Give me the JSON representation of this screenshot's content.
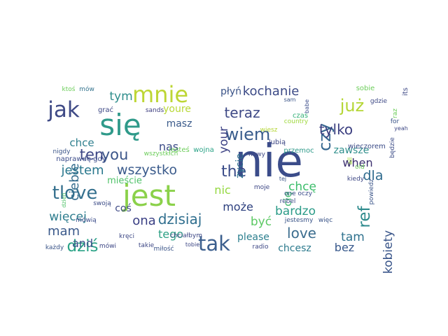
{
  "word_cloud": {
    "words": [
      {
        "text": "nie",
        "color": "#3b4c8a"
      },
      {
        "text": "jest",
        "color": "#8bd14a"
      },
      {
        "text": "się",
        "color": "#2f9a8a"
      },
      {
        "text": "mnie",
        "color": "#bdd634"
      },
      {
        "text": "jak",
        "color": "#3f4a86"
      },
      {
        "text": "tak",
        "color": "#3c5f8e"
      },
      {
        "text": "już",
        "color": "#b5d636"
      },
      {
        "text": "wiem",
        "color": "#3a5d8d"
      },
      {
        "text": "love",
        "color": "#3b6d8e"
      },
      {
        "text": "tlove",
        "color": "#35708e"
      },
      {
        "text": "dziś",
        "color": "#2ba387"
      },
      {
        "text": "teraz",
        "color": "#3f4a86"
      },
      {
        "text": "wszystko",
        "color": "#3b5b8c"
      },
      {
        "text": "the",
        "color": "#3a4b88"
      },
      {
        "text": "czy",
        "color": "#33658e"
      },
      {
        "text": "tylko",
        "color": "#3c3f80"
      },
      {
        "text": "ref",
        "color": "#2d8a8c"
      },
      {
        "text": "może",
        "color": "#2c3f7e"
      },
      {
        "text": "dzisiaj",
        "color": "#2f6e8e"
      },
      {
        "text": "ten",
        "color": "#3c4684"
      },
      {
        "text": "you",
        "color": "#3a5488"
      },
      {
        "text": "jestem",
        "color": "#2a788e"
      },
      {
        "text": "kochanie",
        "color": "#3c4a86"
      },
      {
        "text": "dla",
        "color": "#2f6b8e"
      },
      {
        "text": "kobiety",
        "color": "#385489"
      },
      {
        "text": "bardzo",
        "color": "#2c9b88"
      },
      {
        "text": "być",
        "color": "#5bc863"
      },
      {
        "text": "mam",
        "color": "#3b5a8b"
      },
      {
        "text": "więcej",
        "color": "#2e7d8e"
      },
      {
        "text": "ona",
        "color": "#3a3f84"
      },
      {
        "text": "tego",
        "color": "#2ea184"
      },
      {
        "text": "tam",
        "color": "#2f728e"
      },
      {
        "text": "bez",
        "color": "#37588b"
      },
      {
        "text": "chcesz",
        "color": "#2c7a8d"
      },
      {
        "text": "chcę",
        "color": "#3dbd6b"
      },
      {
        "text": "ciebie",
        "color": "#356d8e"
      },
      {
        "text": "nas",
        "color": "#3a4a86"
      },
      {
        "text": "nic",
        "color": "#93d83e"
      },
      {
        "text": "tym",
        "color": "#2f8e8c"
      },
      {
        "text": "chce",
        "color": "#2e7f8e"
      },
      {
        "text": "your",
        "color": "#3c4184"
      },
      {
        "text": "and",
        "color": "#3b528a"
      },
      {
        "text": "zawsze",
        "color": "#2f8f8c"
      },
      {
        "text": "when",
        "color": "#3b2f6e"
      },
      {
        "text": "please",
        "color": "#2c7f8e"
      },
      {
        "text": "płyń",
        "color": "#3b5488"
      },
      {
        "text": "youre",
        "color": "#b8d836"
      },
      {
        "text": "masz",
        "color": "#3a5a8a"
      },
      {
        "text": "cię",
        "color": "#43bd71"
      },
      {
        "text": "mieście",
        "color": "#4fc269"
      },
      {
        "text": "coś",
        "color": "#3f4a86"
      },
      {
        "text": "życie",
        "color": "#2f708e"
      },
      {
        "text": "sobie",
        "color": "#6ccd5a"
      },
      {
        "text": "its",
        "color": "#3f4a86"
      },
      {
        "text": "ktoś",
        "color": "#6ccd5a"
      },
      {
        "text": "mów",
        "color": "#35748e"
      },
      {
        "text": "grać",
        "color": "#3f4a86"
      },
      {
        "text": "sands",
        "color": "#3d3d7e"
      },
      {
        "text": "sam",
        "color": "#3a5488"
      },
      {
        "text": "babe",
        "color": "#3b4c8a"
      },
      {
        "text": "czas",
        "color": "#35b278"
      },
      {
        "text": "gdzie",
        "color": "#3f4a86"
      },
      {
        "text": "raz",
        "color": "#6ccd5a"
      },
      {
        "text": "for",
        "color": "#3a5488"
      },
      {
        "text": "yeah",
        "color": "#3c4684"
      },
      {
        "text": "będzie",
        "color": "#3a4a86"
      },
      {
        "text": "country",
        "color": "#9ed83c"
      },
      {
        "text": "wiesz",
        "color": "#b5d636"
      },
      {
        "text": "lubią",
        "color": "#3c4684"
      },
      {
        "text": "przemoc",
        "color": "#2f9a8a"
      },
      {
        "text": "wieczorem",
        "color": "#3a4a86"
      },
      {
        "text": "nigdy",
        "color": "#3a5488"
      },
      {
        "text": "naprawdę gdy",
        "color": "#3b4c8a"
      },
      {
        "text": "jesteś",
        "color": "#6ccd5a"
      },
      {
        "text": "wszystkich",
        "color": "#6ccd5a"
      },
      {
        "text": "wojna",
        "color": "#2ba387"
      },
      {
        "text": "nowy",
        "color": "#3c4684"
      },
      {
        "text": "all",
        "color": "#a0d93a"
      },
      {
        "text": "old",
        "color": "#6ccd5a"
      },
      {
        "text": "dzień",
        "color": "#4fc269"
      },
      {
        "text": "swoją",
        "color": "#3a4a86"
      },
      {
        "text": "moje",
        "color": "#3c4684"
      },
      {
        "text": "tej",
        "color": "#3a5488"
      },
      {
        "text": "one oczy",
        "color": "#3b4c8a"
      },
      {
        "text": "jestesmy",
        "color": "#3a5488"
      },
      {
        "text": "więc",
        "color": "#3a5488"
      },
      {
        "text": "kiedy",
        "color": "#3c4684"
      },
      {
        "text": "rebel",
        "color": "#3a4a86"
      },
      {
        "text": "powiedz",
        "color": "#3a5488"
      },
      {
        "text": "chciałbym",
        "color": "#3c4684"
      },
      {
        "text": "mówią",
        "color": "#3b4c8a"
      },
      {
        "text": "mówi",
        "color": "#3c4684"
      },
      {
        "text": "kręci",
        "color": "#3f4a86"
      },
      {
        "text": "tobie",
        "color": "#3c4684"
      },
      {
        "text": "miłość",
        "color": "#3a5488"
      },
      {
        "text": "radio",
        "color": "#3c4684"
      },
      {
        "text": "takie",
        "color": "#3c4684"
      },
      {
        "text": "każdy",
        "color": "#3a5488"
      }
    ]
  }
}
